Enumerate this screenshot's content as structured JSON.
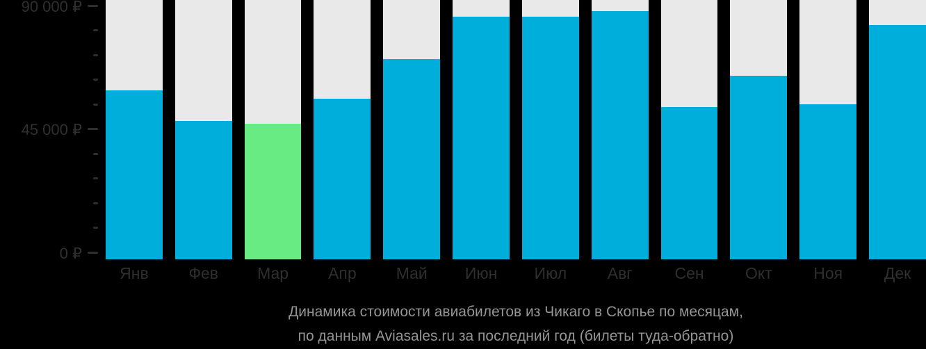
{
  "chart_data": {
    "type": "bar",
    "title": "Динамика стоимости авиабилетов из Чикаго в Скопье по месяцам, по данным Aviasales.ru за последний год (билеты туда-обратно)",
    "categories": [
      "Янв",
      "Фев",
      "Мар",
      "Апр",
      "Май",
      "Июн",
      "Июл",
      "Авг",
      "Сен",
      "Окт",
      "Ноя",
      "Дек"
    ],
    "values": [
      60000,
      49000,
      48000,
      57000,
      71000,
      86000,
      86000,
      88000,
      54000,
      65000,
      55000,
      83000
    ],
    "unit": "₽",
    "highlight": {
      "index": 2,
      "meaning": "cheapest-month"
    },
    "xlabel": "",
    "ylabel": "",
    "ylim": [
      0,
      92000
    ],
    "yticks": [
      {
        "value": 0,
        "label": "0 ₽"
      },
      {
        "value": 45000,
        "label": "45 000 ₽"
      },
      {
        "value": 90000,
        "label": "90 000 ₽"
      }
    ],
    "minor_tick_step": 9000,
    "grid": false,
    "legend": false,
    "track_full_height": true
  },
  "caption": {
    "line1": "Динамика стоимости авиабилетов из Чикаго в Скопье по месяцам,",
    "line2": "по данным Aviasales.ru за последний год (билеты туда-обратно)"
  },
  "colors": {
    "background": "#000000",
    "bar": "#00aedc",
    "bar_highlight": "#68eb83",
    "track": "#e9e9e9",
    "axis_text": "#2f2f2f",
    "caption_text": "#949494"
  }
}
